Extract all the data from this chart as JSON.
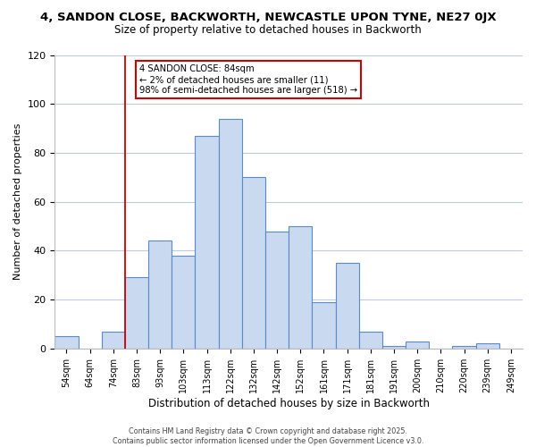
{
  "title_line1": "4, SANDON CLOSE, BACKWORTH, NEWCASTLE UPON TYNE, NE27 0JX",
  "title_line2": "Size of property relative to detached houses in Backworth",
  "xlabel": "Distribution of detached houses by size in Backworth",
  "ylabel": "Number of detached properties",
  "bin_labels": [
    "54sqm",
    "64sqm",
    "74sqm",
    "83sqm",
    "93sqm",
    "103sqm",
    "113sqm",
    "122sqm",
    "132sqm",
    "142sqm",
    "152sqm",
    "161sqm",
    "171sqm",
    "181sqm",
    "191sqm",
    "200sqm",
    "210sqm",
    "220sqm",
    "239sqm",
    "249sqm"
  ],
  "bar_values": [
    5,
    0,
    7,
    29,
    44,
    38,
    87,
    94,
    70,
    48,
    50,
    19,
    35,
    7,
    1,
    3,
    0,
    1,
    2,
    0
  ],
  "bar_color": "#c9d9f0",
  "bar_edge_color": "#5b8ac6",
  "vline_index": 3,
  "vline_color": "#cc0000",
  "ylim": [
    0,
    120
  ],
  "yticks": [
    0,
    20,
    40,
    60,
    80,
    100,
    120
  ],
  "annotation_title": "4 SANDON CLOSE: 84sqm",
  "annotation_line1": "← 2% of detached houses are smaller (11)",
  "annotation_line2": "98% of semi-detached houses are larger (518) →",
  "annotation_box_color": "#ffffff",
  "annotation_box_edge": "#cc0000",
  "footer_line1": "Contains HM Land Registry data © Crown copyright and database right 2025.",
  "footer_line2": "Contains public sector information licensed under the Open Government Licence v3.0.",
  "background_color": "#ffffff",
  "grid_color": "#c0ccdd"
}
